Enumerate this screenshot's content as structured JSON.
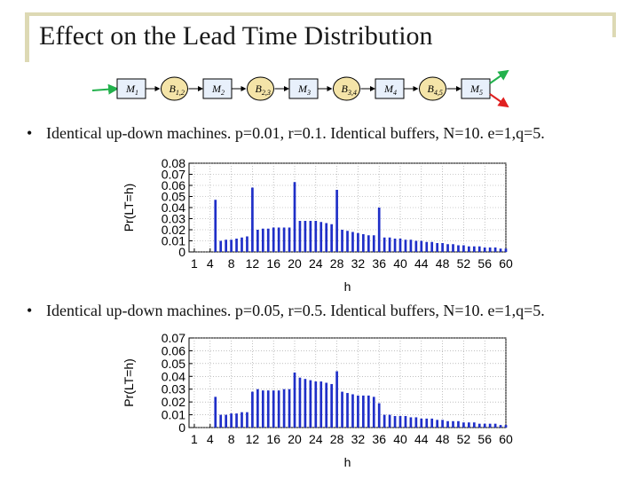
{
  "slide": {
    "title": "Effect on the Lead Time Distribution",
    "bullets": [
      "Identical up-down machines. p=0.01, r=0.1. Identical buffers, N=10. e=1,q=5.",
      "Identical up-down machines. p=0.05, r=0.5. Identical buffers, N=10. e=1,q=5."
    ]
  },
  "line_diagram": {
    "nodes": [
      {
        "kind": "machine",
        "label": "M",
        "sub": "1"
      },
      {
        "kind": "buffer",
        "label": "B",
        "sub": "1,2"
      },
      {
        "kind": "machine",
        "label": "M",
        "sub": "2"
      },
      {
        "kind": "buffer",
        "label": "B",
        "sub": "2,3"
      },
      {
        "kind": "machine",
        "label": "M",
        "sub": "3"
      },
      {
        "kind": "buffer",
        "label": "B",
        "sub": "3,4"
      },
      {
        "kind": "machine",
        "label": "M",
        "sub": "4"
      },
      {
        "kind": "buffer",
        "label": "B",
        "sub": "4,5"
      },
      {
        "kind": "machine",
        "label": "M",
        "sub": "5"
      }
    ],
    "colors": {
      "input_arrow": "#22b14c",
      "output_arrow_1": "#22b14c",
      "output_arrow_2": "#e02020",
      "buffer_fill": "#f4e4a8",
      "machine_fill": "#e8f0fb"
    }
  },
  "chart_data": [
    {
      "type": "bar",
      "xlabel": "h",
      "ylabel": "Pr(LT=h)",
      "xlim": [
        0,
        60
      ],
      "ylim": [
        0,
        0.08
      ],
      "xticks": [
        1,
        4,
        8,
        12,
        16,
        20,
        24,
        28,
        32,
        36,
        40,
        44,
        48,
        52,
        56,
        60
      ],
      "yticks": [
        "0",
        "0.01",
        "0.02",
        "0.03",
        "0.04",
        "0.05",
        "0.06",
        "0.07",
        "0.08"
      ],
      "bar_color": "#1f2fc8",
      "grid": true,
      "x": [
        5,
        6,
        7,
        8,
        9,
        10,
        11,
        12,
        13,
        14,
        15,
        16,
        17,
        18,
        19,
        20,
        21,
        22,
        23,
        24,
        25,
        26,
        27,
        28,
        29,
        30,
        31,
        32,
        33,
        34,
        35,
        36,
        37,
        38,
        39,
        40,
        41,
        42,
        43,
        44,
        45,
        46,
        47,
        48,
        49,
        50,
        51,
        52,
        53,
        54,
        55,
        56,
        57,
        58,
        59,
        60
      ],
      "values": [
        0.047,
        0.01,
        0.011,
        0.011,
        0.012,
        0.013,
        0.014,
        0.058,
        0.02,
        0.021,
        0.021,
        0.022,
        0.022,
        0.022,
        0.022,
        0.063,
        0.028,
        0.028,
        0.028,
        0.028,
        0.027,
        0.026,
        0.025,
        0.056,
        0.02,
        0.019,
        0.018,
        0.017,
        0.016,
        0.015,
        0.015,
        0.04,
        0.013,
        0.013,
        0.012,
        0.012,
        0.011,
        0.011,
        0.01,
        0.01,
        0.009,
        0.009,
        0.008,
        0.008,
        0.007,
        0.007,
        0.006,
        0.006,
        0.005,
        0.005,
        0.005,
        0.004,
        0.004,
        0.004,
        0.003,
        0.003
      ]
    },
    {
      "type": "bar",
      "xlabel": "h",
      "ylabel": "Pr(LT=h)",
      "xlim": [
        0,
        60
      ],
      "ylim": [
        0,
        0.07
      ],
      "xticks": [
        1,
        4,
        8,
        12,
        16,
        20,
        24,
        28,
        32,
        36,
        40,
        44,
        48,
        52,
        56,
        60
      ],
      "yticks": [
        "0",
        "0.01",
        "0.02",
        "0.03",
        "0.04",
        "0.05",
        "0.06",
        "0.07"
      ],
      "bar_color": "#1f2fc8",
      "grid": true,
      "x": [
        5,
        6,
        7,
        8,
        9,
        10,
        11,
        12,
        13,
        14,
        15,
        16,
        17,
        18,
        19,
        20,
        21,
        22,
        23,
        24,
        25,
        26,
        27,
        28,
        29,
        30,
        31,
        32,
        33,
        34,
        35,
        36,
        37,
        38,
        39,
        40,
        41,
        42,
        43,
        44,
        45,
        46,
        47,
        48,
        49,
        50,
        51,
        52,
        53,
        54,
        55,
        56,
        57,
        58,
        59,
        60
      ],
      "values": [
        0.024,
        0.01,
        0.01,
        0.011,
        0.011,
        0.012,
        0.012,
        0.028,
        0.03,
        0.029,
        0.029,
        0.029,
        0.029,
        0.03,
        0.03,
        0.043,
        0.039,
        0.038,
        0.037,
        0.036,
        0.036,
        0.035,
        0.034,
        0.044,
        0.028,
        0.027,
        0.026,
        0.025,
        0.025,
        0.025,
        0.024,
        0.019,
        0.01,
        0.01,
        0.009,
        0.009,
        0.009,
        0.008,
        0.008,
        0.007,
        0.007,
        0.007,
        0.006,
        0.006,
        0.005,
        0.005,
        0.005,
        0.004,
        0.004,
        0.004,
        0.003,
        0.003,
        0.003,
        0.003,
        0.002,
        0.002
      ]
    }
  ]
}
